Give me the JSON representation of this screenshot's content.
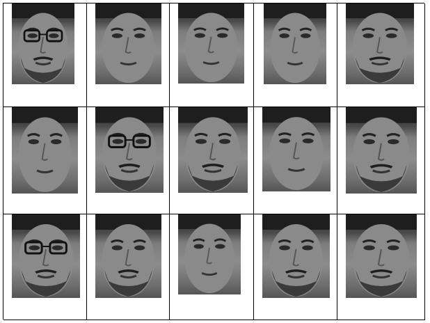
{
  "grid": {
    "rows": 3,
    "columns": 5,
    "cells": [
      {
        "row": 1,
        "col": 1,
        "image": "face-photo",
        "glasses": true,
        "beard": true
      },
      {
        "row": 1,
        "col": 2,
        "image": "face-photo",
        "glasses": false,
        "beard": false
      },
      {
        "row": 1,
        "col": 3,
        "image": "face-photo",
        "glasses": false,
        "beard": false
      },
      {
        "row": 1,
        "col": 4,
        "image": "face-photo",
        "glasses": false,
        "beard": false
      },
      {
        "row": 1,
        "col": 5,
        "image": "face-photo",
        "glasses": false,
        "beard": true
      },
      {
        "row": 2,
        "col": 1,
        "image": "face-photo",
        "glasses": false,
        "beard": false
      },
      {
        "row": 2,
        "col": 2,
        "image": "face-photo",
        "glasses": true,
        "beard": true
      },
      {
        "row": 2,
        "col": 3,
        "image": "face-photo",
        "glasses": false,
        "beard": true
      },
      {
        "row": 2,
        "col": 4,
        "image": "face-photo",
        "glasses": false,
        "beard": false
      },
      {
        "row": 2,
        "col": 5,
        "image": "face-photo",
        "glasses": false,
        "beard": true
      },
      {
        "row": 3,
        "col": 1,
        "image": "face-photo",
        "glasses": true,
        "beard": true
      },
      {
        "row": 3,
        "col": 2,
        "image": "face-photo",
        "glasses": false,
        "beard": true
      },
      {
        "row": 3,
        "col": 3,
        "image": "face-photo",
        "glasses": false,
        "beard": false
      },
      {
        "row": 3,
        "col": 4,
        "image": "face-photo",
        "glasses": false,
        "beard": true
      },
      {
        "row": 3,
        "col": 5,
        "image": "face-photo",
        "glasses": false,
        "beard": true
      }
    ]
  },
  "colors": {
    "border": "#000000",
    "background": "#ffffff",
    "photo_tone": "grayscale"
  }
}
